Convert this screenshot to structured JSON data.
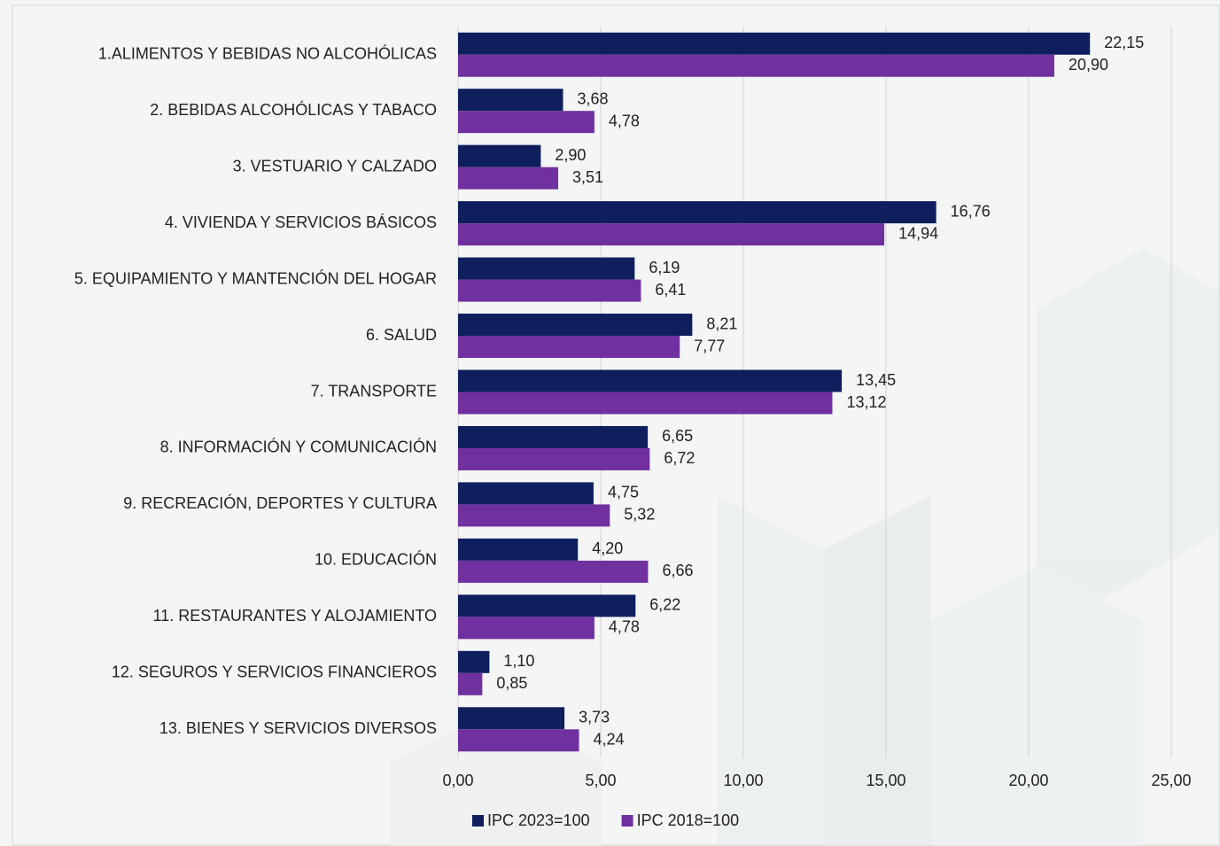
{
  "chart_data": {
    "type": "bar",
    "orientation": "horizontal",
    "categories": [
      "1.ALIMENTOS Y BEBIDAS NO ALCOHÓLICAS",
      "2. BEBIDAS ALCOHÓLICAS Y TABACO",
      "3. VESTUARIO Y CALZADO",
      "4. VIVIENDA Y SERVICIOS BÁSICOS",
      "5. EQUIPAMIENTO Y MANTENCIÓN DEL HOGAR",
      "6. SALUD",
      "7. TRANSPORTE",
      "8. INFORMACIÓN Y COMUNICACIÓN",
      "9. RECREACIÓN, DEPORTES Y CULTURA",
      "10. EDUCACIÓN",
      "11. RESTAURANTES Y ALOJAMIENTO",
      "12. SEGUROS Y SERVICIOS FINANCIEROS",
      "13. BIENES Y SERVICIOS DIVERSOS"
    ],
    "series": [
      {
        "name": "IPC 2023=100",
        "color": "#0f1f5e",
        "values": [
          22.15,
          3.68,
          2.9,
          16.76,
          6.19,
          8.21,
          13.45,
          6.65,
          4.75,
          4.2,
          6.22,
          1.1,
          3.73
        ],
        "value_labels": [
          "22,15",
          "3,68",
          "2,90",
          "16,76",
          "6,19",
          "8,21",
          "13,45",
          "6,65",
          "4,75",
          "4,20",
          "6,22",
          "1,10",
          "3,73"
        ]
      },
      {
        "name": "IPC 2018=100",
        "color": "#7030a0",
        "values": [
          20.9,
          4.78,
          3.51,
          14.94,
          6.41,
          7.77,
          13.12,
          6.72,
          5.32,
          6.66,
          4.78,
          0.85,
          4.24
        ],
        "value_labels": [
          "20,90",
          "4,78",
          "3,51",
          "14,94",
          "6,41",
          "7,77",
          "13,12",
          "6,72",
          "5,32",
          "6,66",
          "4,78",
          "0,85",
          "4,24"
        ]
      }
    ],
    "xlim": [
      0,
      25
    ],
    "xticks": [
      {
        "value": 0,
        "label": "0,00"
      },
      {
        "value": 5,
        "label": "5,00"
      },
      {
        "value": 10,
        "label": "10,00"
      },
      {
        "value": 15,
        "label": "15,00"
      },
      {
        "value": 20,
        "label": "20,00"
      },
      {
        "value": 25,
        "label": "25,00"
      }
    ],
    "grid": true,
    "legend": "bottom"
  }
}
